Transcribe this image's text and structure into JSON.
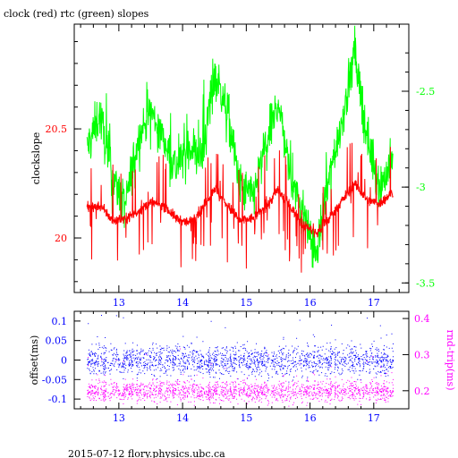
{
  "title": "clock (red) rtc (green) slopes",
  "footer": "2015-07-12 flory.physics.ubc.ca",
  "colors": {
    "red": "#ff0000",
    "green": "#00ff00",
    "blue": "#0000ff",
    "magenta": "#ff00ff",
    "axis": "#000000"
  },
  "chart_data": [
    {
      "type": "line",
      "title": "clock (red) rtc (green) slopes",
      "xlim": [
        12.3,
        17.55
      ],
      "xticks": [
        13,
        14,
        15,
        16,
        17
      ],
      "xtick_labels": [
        "13",
        "14",
        "15",
        "16",
        "17"
      ],
      "ylabel": "clockslope",
      "ylim_left": [
        19.75,
        20.98
      ],
      "yticks_left": [
        20,
        20.5
      ],
      "ytick_labels_left": [
        "20",
        "20.5"
      ],
      "ylim_right": [
        -3.55,
        -2.15
      ],
      "yticks_right": [
        -3.5,
        -3,
        -2.5
      ],
      "ytick_labels_right": [
        "-3.5",
        "-3",
        "-2.5"
      ],
      "series": [
        {
          "name": "clock",
          "color": "red",
          "axis": "left",
          "x": [
            12.5,
            12.7,
            12.9,
            13.1,
            13.3,
            13.5,
            13.7,
            13.9,
            14.1,
            14.3,
            14.5,
            14.7,
            14.9,
            15.1,
            15.3,
            15.5,
            15.7,
            15.9,
            16.1,
            16.3,
            16.5,
            16.7,
            16.9,
            17.1,
            17.3
          ],
          "y": [
            20.14,
            20.15,
            20.08,
            20.09,
            20.12,
            20.16,
            20.15,
            20.09,
            20.07,
            20.13,
            20.23,
            20.15,
            20.08,
            20.09,
            20.14,
            20.22,
            20.14,
            20.06,
            20.02,
            20.09,
            20.17,
            20.25,
            20.17,
            20.16,
            20.21
          ]
        },
        {
          "name": "rtc",
          "color": "green",
          "axis": "right",
          "x": [
            12.5,
            12.7,
            12.9,
            13.1,
            13.3,
            13.5,
            13.7,
            13.9,
            14.1,
            14.3,
            14.5,
            14.7,
            14.9,
            15.1,
            15.3,
            15.5,
            15.7,
            15.9,
            16.1,
            16.3,
            16.5,
            16.7,
            16.9,
            17.1,
            17.3
          ],
          "y": [
            -2.8,
            -2.62,
            -2.95,
            -3.1,
            -2.75,
            -2.6,
            -2.75,
            -2.9,
            -2.78,
            -2.85,
            -2.4,
            -2.6,
            -3.0,
            -3.05,
            -2.8,
            -2.55,
            -2.95,
            -3.15,
            -3.35,
            -2.95,
            -2.65,
            -2.3,
            -2.75,
            -3.0,
            -2.85
          ]
        }
      ]
    },
    {
      "type": "scatter",
      "xlim": [
        12.3,
        17.55
      ],
      "xticks": [
        13,
        14,
        15,
        16,
        17
      ],
      "xtick_labels": [
        "13",
        "14",
        "15",
        "16",
        "17"
      ],
      "ylabel_left": "offset(ms)",
      "ylim_left": [
        -0.125,
        0.125
      ],
      "yticks_left": [
        -0.1,
        -0.05,
        0,
        0.05,
        0.1
      ],
      "ytick_labels_left": [
        "-0.1",
        "-0.05",
        "0",
        "0.05",
        "0.1"
      ],
      "ylabel_right": "rnd-trip(ms)",
      "ylim_right": [
        0.15,
        0.42
      ],
      "yticks_right": [
        0.2,
        0.3,
        0.4
      ],
      "ytick_labels_right": [
        "0.2",
        "0.3",
        "0.4"
      ],
      "series": [
        {
          "name": "offset",
          "color": "blue",
          "axis": "left",
          "center": 0.0,
          "spread": 0.02
        },
        {
          "name": "rnd-trip",
          "color": "magenta",
          "axis": "right",
          "center": 0.2,
          "spread": 0.015
        }
      ]
    }
  ]
}
